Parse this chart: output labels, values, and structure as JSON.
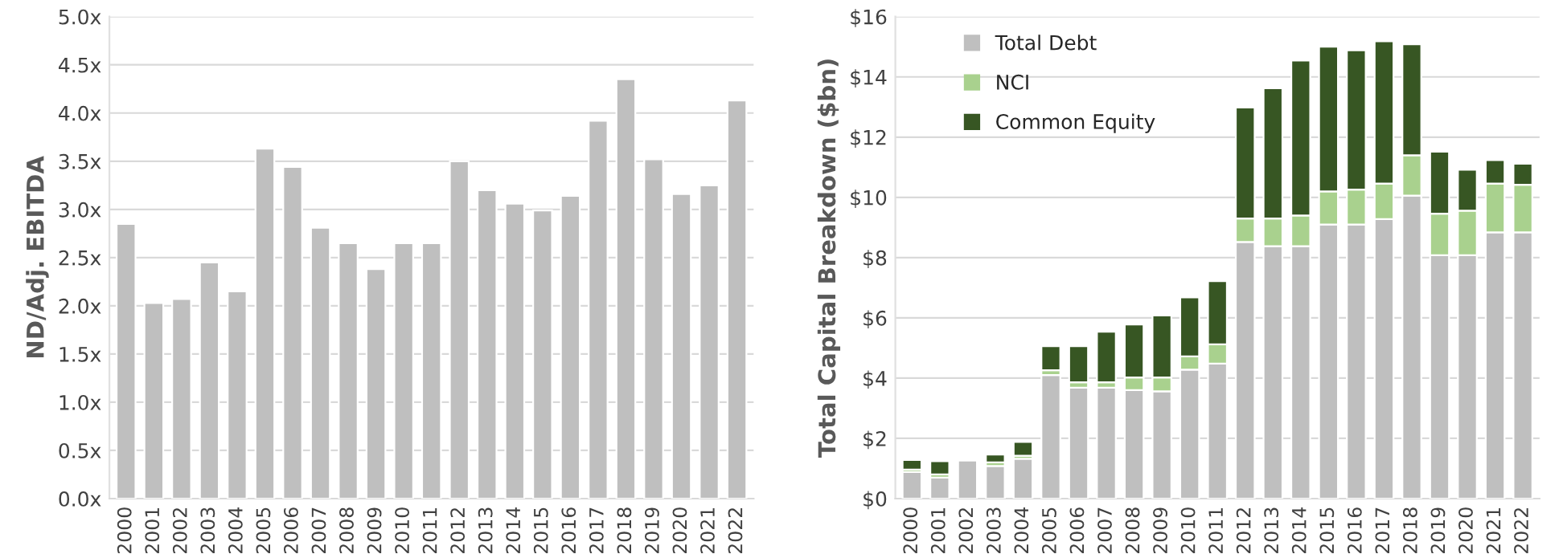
{
  "chart_data": [
    {
      "type": "bar",
      "ylabel": "ND/Adj. EBITDA",
      "categories": [
        "2000",
        "2001",
        "2002",
        "2003",
        "2004",
        "2005",
        "2006",
        "2007",
        "2008",
        "2009",
        "2010",
        "2011",
        "2012",
        "2013",
        "2014",
        "2015",
        "2016",
        "2017",
        "2018",
        "2019",
        "2020",
        "2021",
        "2022"
      ],
      "series": [
        {
          "color": "#bfbfbf",
          "values": [
            2.85,
            2.03,
            2.07,
            2.45,
            2.15,
            3.63,
            3.44,
            2.81,
            2.65,
            2.38,
            2.65,
            2.65,
            3.5,
            3.2,
            3.06,
            2.99,
            3.14,
            3.92,
            4.35,
            3.52,
            3.16,
            3.25,
            4.13
          ]
        }
      ],
      "ylim": [
        0,
        5
      ],
      "yticks": [
        {
          "value": 0,
          "label": "0.0x"
        },
        {
          "value": 0.5,
          "label": "0.5x"
        },
        {
          "value": 1,
          "label": "1.0x"
        },
        {
          "value": 1.5,
          "label": "1.5x"
        },
        {
          "value": 2,
          "label": "2.0x"
        },
        {
          "value": 2.5,
          "label": "2.5x"
        },
        {
          "value": 3,
          "label": "3.0x"
        },
        {
          "value": 3.5,
          "label": "3.5x"
        },
        {
          "value": 4,
          "label": "4.0x"
        },
        {
          "value": 4.5,
          "label": "4.5x"
        },
        {
          "value": 5,
          "label": "5.0x"
        }
      ],
      "grid": "y",
      "legend": false
    },
    {
      "type": "bar",
      "stacked": true,
      "ylabel": "Total Capital Breakdown ($bn)",
      "categories": [
        "2000",
        "2001",
        "2002",
        "2003",
        "2004",
        "2005",
        "2006",
        "2007",
        "2008",
        "2009",
        "2010",
        "2011",
        "2012",
        "2013",
        "2014",
        "2015",
        "2016",
        "2017",
        "2018",
        "2019",
        "2020",
        "2021",
        "2022"
      ],
      "series": [
        {
          "name": "Total Debt",
          "color": "#bfbfbf",
          "values": [
            0.88,
            0.7,
            1.26,
            1.08,
            1.32,
            4.1,
            3.68,
            3.68,
            3.6,
            3.56,
            4.28,
            4.48,
            8.52,
            8.38,
            8.38,
            9.1,
            9.1,
            9.28,
            10.06,
            8.08,
            8.08,
            8.84,
            8.84
          ]
        },
        {
          "name": "NCI",
          "color": "#a9d18e",
          "values": [
            0.08,
            0.1,
            null,
            0.12,
            0.1,
            0.16,
            0.18,
            0.18,
            0.42,
            0.46,
            0.44,
            0.64,
            0.78,
            0.92,
            1.02,
            1.1,
            1.16,
            1.18,
            1.34,
            1.38,
            1.48,
            1.62,
            1.58
          ]
        },
        {
          "name": "Common Equity",
          "color": "#375623",
          "values": [
            0.32,
            0.44,
            null,
            0.26,
            0.46,
            0.8,
            1.2,
            1.68,
            1.76,
            2.06,
            1.96,
            2.1,
            3.68,
            4.32,
            5.14,
            4.8,
            4.62,
            4.72,
            3.68,
            2.06,
            1.36,
            0.78,
            0.7
          ]
        }
      ],
      "ylim": [
        0,
        16
      ],
      "yticks": [
        {
          "value": 0,
          "label": "$0"
        },
        {
          "value": 2,
          "label": "$2"
        },
        {
          "value": 4,
          "label": "$4"
        },
        {
          "value": 6,
          "label": "$6"
        },
        {
          "value": 8,
          "label": "$8"
        },
        {
          "value": 10,
          "label": "$10"
        },
        {
          "value": 12,
          "label": "$12"
        },
        {
          "value": 14,
          "label": "$14"
        },
        {
          "value": 16,
          "label": "$16"
        }
      ],
      "grid": "y",
      "legend": "top left"
    }
  ]
}
